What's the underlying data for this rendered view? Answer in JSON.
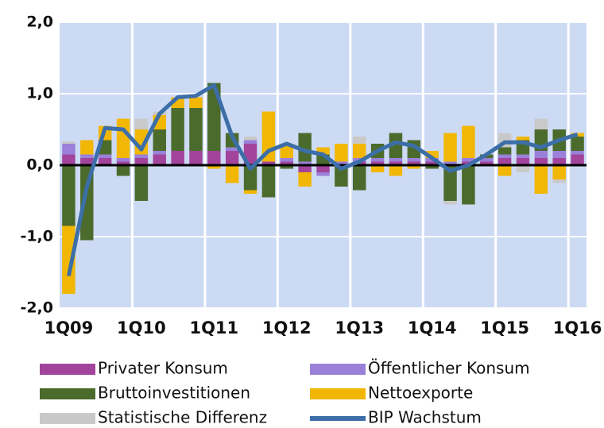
{
  "chart_data": {
    "type": "bar",
    "stacked": true,
    "categories": [
      "1Q09",
      null,
      null,
      null,
      "1Q10",
      null,
      null,
      null,
      "1Q11",
      null,
      null,
      null,
      "1Q12",
      null,
      null,
      null,
      "1Q13",
      null,
      null,
      null,
      "1Q14",
      null,
      null,
      null,
      "1Q15",
      null,
      null,
      null,
      "1Q16"
    ],
    "ylim": [
      -2,
      2
    ],
    "yticks": [
      {
        "value": -2,
        "label": "-2,0"
      },
      {
        "value": -1,
        "label": "-1,0"
      },
      {
        "value": 0,
        "label": "0,0"
      },
      {
        "value": 1,
        "label": "1,0"
      },
      {
        "value": 2,
        "label": "2,0"
      }
    ],
    "grid": true,
    "series": [
      {
        "name": "Privater Konsum",
        "color": "#a2449c",
        "values": [
          0.15,
          0.1,
          0.1,
          0.05,
          0.1,
          0.15,
          0.2,
          0.2,
          0.2,
          0.2,
          0.3,
          0.05,
          0.05,
          -0.1,
          -0.1,
          0,
          0.05,
          0.05,
          0.05,
          0.05,
          0.05,
          0,
          0.05,
          0.05,
          0.1,
          0.1,
          0.1,
          0.1,
          0.15
        ]
      },
      {
        "name": "Öffentlicher Konsum",
        "color": "#9a80d8",
        "values": [
          0.15,
          0.05,
          0.05,
          0.05,
          0.05,
          0.05,
          0,
          0,
          0,
          0.05,
          0.05,
          0,
          0.05,
          0.05,
          -0.05,
          0.05,
          0.05,
          0.05,
          0.05,
          0.05,
          0.05,
          0.05,
          0.05,
          0.05,
          0.05,
          0.05,
          0.1,
          0.1,
          0.05
        ]
      },
      {
        "name": "Bruttoinvestitionen",
        "color": "#4b6b2d",
        "values": [
          -0.85,
          -1.05,
          0.2,
          -0.15,
          -0.5,
          0.3,
          0.6,
          0.6,
          0.95,
          0.2,
          -0.35,
          -0.45,
          -0.05,
          0.4,
          0.15,
          -0.3,
          -0.35,
          0.2,
          0.35,
          0.25,
          -0.05,
          -0.5,
          -0.55,
          0.05,
          0.1,
          0.2,
          0.3,
          0.3,
          0.2
        ]
      },
      {
        "name": "Nettoexporte",
        "color": "#f2b705",
        "values": [
          -0.95,
          0.2,
          0.2,
          0.55,
          0.35,
          0.2,
          0.15,
          0.15,
          -0.05,
          -0.25,
          -0.05,
          0.7,
          0.2,
          -0.2,
          0.1,
          0.25,
          0.2,
          -0.1,
          -0.15,
          -0.05,
          0.1,
          0.4,
          0.45,
          0,
          -0.15,
          0.05,
          -0.4,
          -0.2,
          0.05
        ]
      },
      {
        "name": "Statistische Differenz",
        "color": "#c9c9c9",
        "values": [
          0.03,
          0,
          0,
          0,
          0.15,
          0.05,
          0,
          0,
          0,
          0,
          0.05,
          0,
          0,
          0,
          0,
          0,
          0.1,
          0,
          0,
          0,
          0,
          -0.05,
          0,
          0,
          0.2,
          -0.1,
          0.15,
          -0.05,
          0
        ]
      },
      {
        "name": "BIP Wachstum",
        "color": "#3c6ea8",
        "type": "line",
        "values": [
          -1.55,
          -0.3,
          0.52,
          0.5,
          0.22,
          0.72,
          0.95,
          0.97,
          1.12,
          0.4,
          -0.05,
          0.2,
          0.3,
          0.2,
          0.15,
          -0.05,
          0.05,
          0.2,
          0.32,
          0.27,
          0.1,
          -0.08,
          0,
          0.15,
          0.32,
          0.32,
          0.25,
          0.35,
          0.43
        ]
      }
    ]
  }
}
